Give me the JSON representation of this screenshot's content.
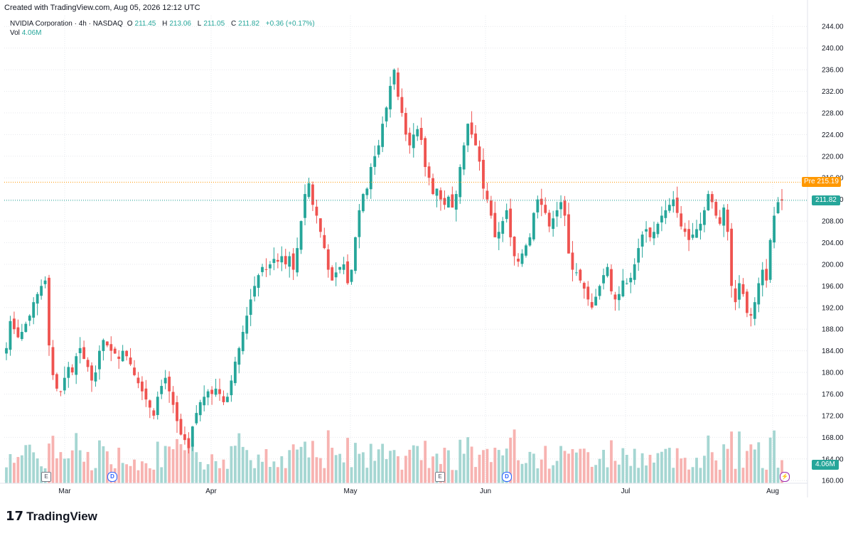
{
  "header": {
    "created": "Created with TradingView.com, Aug 05, 2026 12:12 UTC"
  },
  "legend": {
    "symbol": "NVIDIA Corporation · 4h · NASDAQ",
    "o_label": "O",
    "o_value": "211.45",
    "h_label": "H",
    "h_value": "213.06",
    "l_label": "L",
    "l_value": "211.05",
    "c_label": "C",
    "c_value": "211.82",
    "change": "+0.36 (+0.17%)",
    "vol_label": "Vol",
    "vol_value": "4.06M"
  },
  "badges": {
    "pre_label": "Pre",
    "pre_value": "215.19",
    "last_price": "211.82",
    "volume": "4.06M"
  },
  "events": [
    "E",
    "D",
    "E",
    "D"
  ],
  "footer": {
    "brand": "TradingView"
  },
  "colors": {
    "up": "#26a69a",
    "down": "#ef5350",
    "up_vol": "#a5d6d2",
    "down_vol": "#f7b3b1",
    "pre": "#ff9800",
    "grid": "#e6e8ec"
  },
  "chart_data": {
    "type": "candlestick",
    "title": "NVIDIA Corporation · 4h · NASDAQ",
    "x_labels": [
      "Mar",
      "Apr",
      "May",
      "Jun",
      "Jul",
      "Aug"
    ],
    "y_ticks": [
      "244.00",
      "240.00",
      "236.00",
      "232.00",
      "228.00",
      "224.00",
      "220.00",
      "216.00",
      "212.00",
      "208.00",
      "204.00",
      "200.00",
      "196.00",
      "192.00",
      "188.00",
      "184.00",
      "180.00",
      "176.00",
      "172.00",
      "168.00",
      "164.00",
      "160.00"
    ],
    "ylim": [
      159.5,
      246.0
    ],
    "pre_market_price": 215.19,
    "last_close": 211.82,
    "close_series": [
      184.5,
      189.5,
      188.0,
      186.5,
      187.5,
      189.0,
      190.5,
      193.0,
      194.5,
      196.0,
      197.0,
      185.0,
      179.5,
      177.0,
      176.5,
      179.0,
      181.0,
      180.0,
      183.0,
      184.5,
      182.5,
      181.0,
      178.5,
      180.0,
      184.0,
      186.0,
      185.0,
      184.0,
      183.5,
      182.5,
      184.0,
      183.0,
      181.5,
      179.5,
      178.0,
      176.5,
      175.0,
      173.5,
      172.0,
      175.5,
      177.5,
      179.0,
      176.5,
      174.0,
      171.0,
      168.5,
      167.5,
      166.0,
      170.0,
      172.5,
      174.5,
      175.5,
      176.5,
      176.0,
      177.0,
      176.0,
      174.5,
      175.5,
      178.5,
      182.0,
      184.5,
      187.5,
      190.5,
      193.5,
      196.0,
      198.0,
      199.5,
      199.0,
      200.0,
      201.0,
      200.5,
      201.5,
      200.0,
      201.5,
      199.0,
      203.0,
      208.0,
      213.0,
      215.0,
      211.0,
      209.0,
      206.0,
      203.0,
      199.0,
      197.0,
      198.5,
      199.5,
      200.0,
      196.5,
      199.0,
      205.0,
      210.0,
      213.0,
      214.0,
      218.0,
      220.0,
      222.0,
      226.0,
      229.0,
      233.0,
      236.0,
      231.0,
      228.0,
      224.0,
      222.0,
      224.0,
      225.0,
      223.0,
      218.0,
      216.0,
      213.0,
      214.0,
      212.0,
      211.0,
      212.5,
      210.5,
      213.0,
      218.0,
      222.0,
      226.0,
      224.0,
      222.0,
      219.0,
      214.0,
      212.0,
      209.0,
      205.0,
      206.0,
      208.0,
      210.0,
      205.0,
      201.5,
      200.5,
      202.0,
      203.5,
      205.0,
      209.5,
      212.0,
      211.0,
      209.5,
      207.0,
      208.5,
      210.0,
      211.5,
      209.0,
      202.0,
      199.0,
      198.5,
      197.0,
      195.5,
      193.5,
      192.0,
      194.0,
      196.0,
      198.0,
      199.5,
      195.0,
      193.5,
      194.5,
      197.0,
      196.5,
      197.5,
      200.0,
      203.0,
      205.5,
      206.5,
      205.0,
      206.0,
      207.5,
      209.0,
      210.0,
      211.0,
      212.0,
      209.5,
      207.0,
      206.0,
      204.5,
      205.5,
      206.5,
      207.5,
      210.0,
      213.0,
      211.5,
      209.0,
      207.5,
      210.5,
      206.0,
      196.0,
      193.0,
      196.5,
      194.5,
      191.0,
      190.5,
      193.0,
      196.5,
      199.0,
      197.0,
      204.5,
      209.0,
      211.5,
      211.82
    ]
  }
}
